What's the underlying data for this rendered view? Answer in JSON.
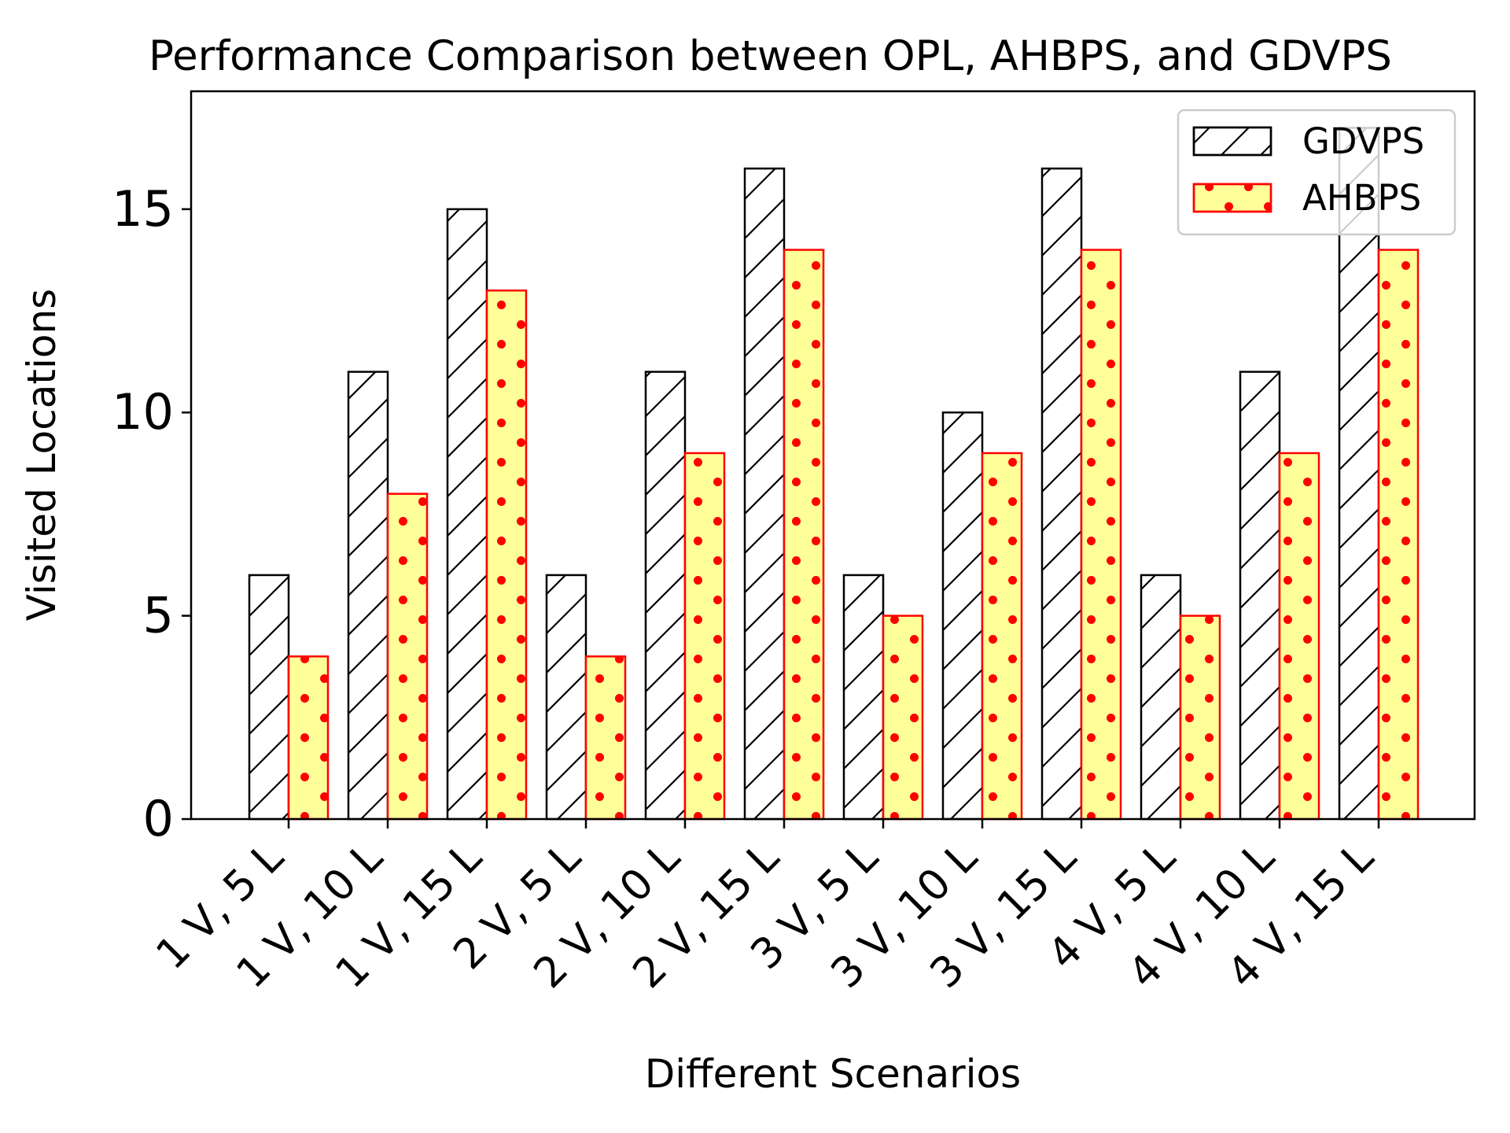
{
  "chart_data": {
    "type": "bar",
    "title": "Performance Comparison between OPL, AHBPS, and GDVPS",
    "xlabel": "Different Scenarios",
    "ylabel": "Visited Locations",
    "ylim": [
      0,
      17.9
    ],
    "yticks": [
      0,
      5,
      10,
      15
    ],
    "grid": false,
    "legend_position": "top-right",
    "categories": [
      "1 V, 5 L",
      "1 V, 10 L",
      "1 V, 15 L",
      "2 V, 5 L",
      "2 V, 10 L",
      "2 V, 15 L",
      "3 V, 5 L",
      "3 V, 10 L",
      "3 V, 15 L",
      "4 V, 5 L",
      "4 V, 10 L",
      "4 V, 15 L"
    ],
    "series": [
      {
        "name": "GDVPS",
        "values": [
          6,
          11,
          15,
          6,
          11,
          16,
          6,
          10,
          16,
          6,
          11,
          17
        ],
        "fill": "#ffffff",
        "edge": "#000000",
        "hatch": "diagonal"
      },
      {
        "name": "AHBPS",
        "values": [
          4,
          8,
          13,
          4,
          9,
          14,
          5,
          9,
          14,
          5,
          9,
          14
        ],
        "fill": "#ffff99",
        "edge": "#ff0000",
        "hatch": "dots"
      }
    ]
  }
}
